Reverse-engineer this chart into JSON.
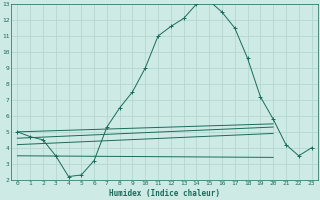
{
  "title": "",
  "xlabel": "Humidex (Indice chaleur)",
  "background_color": "#ceeae4",
  "grid_color": "#b0d4cc",
  "line_color": "#1a6b5a",
  "xlim": [
    -0.5,
    23.5
  ],
  "ylim": [
    2,
    13
  ],
  "xticks": [
    0,
    1,
    2,
    3,
    4,
    5,
    6,
    7,
    8,
    9,
    10,
    11,
    12,
    13,
    14,
    15,
    16,
    17,
    18,
    19,
    20,
    21,
    22,
    23
  ],
  "yticks": [
    2,
    3,
    4,
    5,
    6,
    7,
    8,
    9,
    10,
    11,
    12,
    13
  ],
  "main_x": [
    0,
    1,
    2,
    3,
    4,
    5,
    6,
    7,
    8,
    9,
    10,
    11,
    12,
    13,
    14,
    15,
    16,
    17,
    18,
    19,
    20,
    21,
    22,
    23
  ],
  "main_y": [
    5.0,
    4.7,
    4.5,
    3.5,
    2.2,
    2.3,
    3.2,
    5.3,
    6.5,
    7.5,
    9.0,
    11.0,
    11.6,
    12.1,
    13.0,
    13.2,
    12.5,
    11.5,
    9.6,
    7.2,
    5.8,
    4.2,
    3.5,
    4.0
  ],
  "line1_x": [
    0,
    20
  ],
  "line1_y": [
    5.0,
    5.5
  ],
  "line2_x": [
    0,
    20
  ],
  "line2_y": [
    4.6,
    5.3
  ],
  "line3_x": [
    0,
    20
  ],
  "line3_y": [
    4.2,
    4.9
  ],
  "line4_x": [
    0,
    20
  ],
  "line4_y": [
    3.5,
    3.4
  ]
}
